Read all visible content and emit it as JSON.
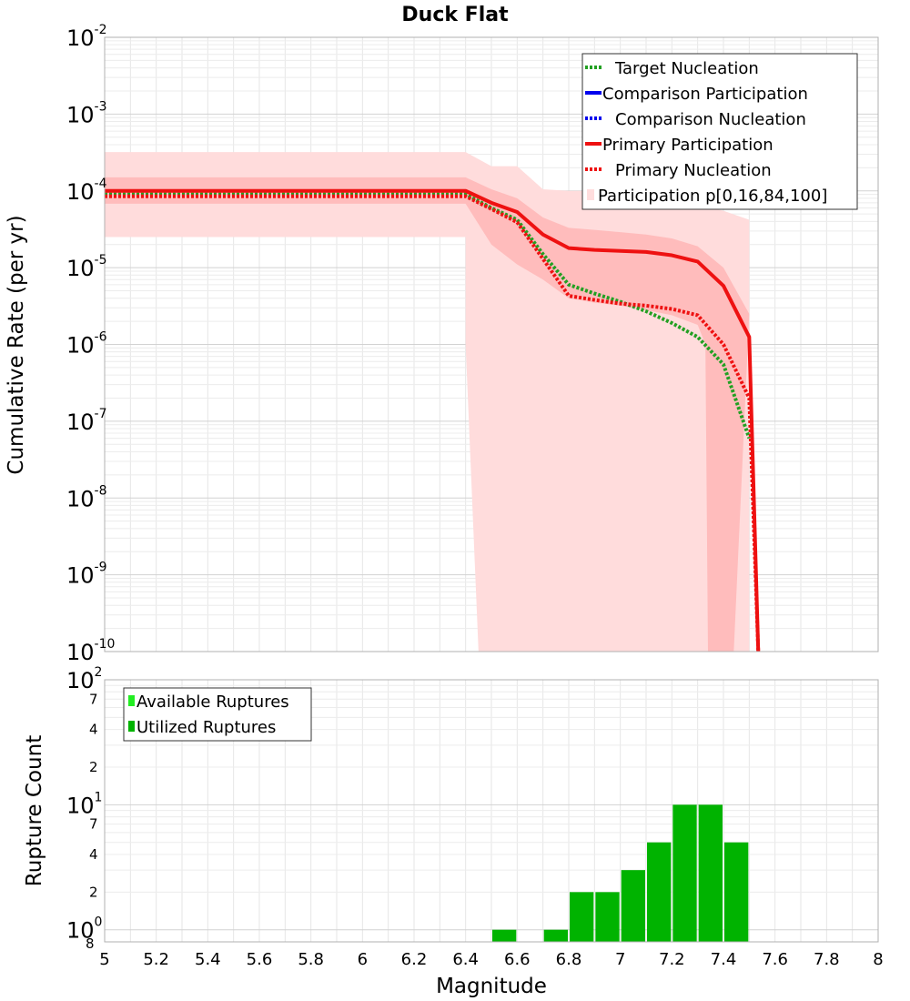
{
  "chart_data": [
    {
      "type": "line",
      "title": "Duck Flat",
      "xlabel": "",
      "ylabel": "Cumulative Rate (per yr)",
      "xlim": [
        5,
        8
      ],
      "ylim": [
        1e-10,
        0.01
      ],
      "y_scale": "log",
      "grid": true,
      "legend_position": "top-right",
      "y_tick_labels": [
        {
          "base": "10",
          "exp": "-2"
        },
        {
          "base": "10",
          "exp": "-3"
        },
        {
          "base": "10",
          "exp": "-4"
        },
        {
          "base": "10",
          "exp": "-5"
        },
        {
          "base": "10",
          "exp": "-6"
        },
        {
          "base": "10",
          "exp": "-7"
        },
        {
          "base": "10",
          "exp": "-8"
        },
        {
          "base": "10",
          "exp": "-9"
        },
        {
          "base": "10",
          "exp": "-10"
        }
      ],
      "legend": [
        {
          "label": "Target Nucleation",
          "color": "#22a022",
          "style": "dotted"
        },
        {
          "label": "Comparison Participation",
          "color": "#0000ee",
          "style": "solid"
        },
        {
          "label": "Comparison Nucleation",
          "color": "#0000ee",
          "style": "dotted"
        },
        {
          "label": "Primary Participation",
          "color": "#ee1111",
          "style": "solid"
        },
        {
          "label": "Primary Nucleation",
          "color": "#ee1111",
          "style": "dotted"
        },
        {
          "label": "Participation p[0,16,84,100]",
          "color": "#ffdddd",
          "style": "band"
        }
      ],
      "series": [
        {
          "name": "Target Nucleation",
          "color": "#22a022",
          "style": "dotted",
          "x": [
            5.0,
            6.4,
            6.5,
            6.6,
            6.7,
            6.8,
            6.9,
            7.0,
            7.1,
            7.2,
            7.3,
            7.4,
            7.5
          ],
          "y": [
            9e-05,
            9e-05,
            6e-05,
            4.2e-05,
            1.5e-05,
            6e-06,
            4.6e-06,
            3.6e-06,
            2.7e-06,
            1.9e-06,
            1.25e-06,
            5.5e-07,
            6e-08
          ]
        },
        {
          "name": "Primary Participation",
          "color": "#ee1111",
          "style": "solid",
          "x": [
            5.0,
            6.4,
            6.5,
            6.6,
            6.7,
            6.8,
            6.9,
            7.0,
            7.1,
            7.2,
            7.3,
            7.4,
            7.5,
            7.535
          ],
          "y": [
            0.0001,
            0.0001,
            7e-05,
            5.3e-05,
            2.7e-05,
            1.8e-05,
            1.7e-05,
            1.65e-05,
            1.6e-05,
            1.45e-05,
            1.2e-05,
            5.8e-06,
            1.25e-06,
            1e-10
          ]
        },
        {
          "name": "Primary Nucleation",
          "color": "#ee1111",
          "style": "dotted",
          "x": [
            5.0,
            6.4,
            6.5,
            6.6,
            6.7,
            6.8,
            6.9,
            7.0,
            7.1,
            7.2,
            7.3,
            7.4,
            7.5,
            7.535
          ],
          "y": [
            8.5e-05,
            8.5e-05,
            5.8e-05,
            3.9e-05,
            1.3e-05,
            4.3e-06,
            3.8e-06,
            3.4e-06,
            3.2e-06,
            2.9e-06,
            2.4e-06,
            1e-06,
            2e-07,
            1e-10
          ]
        }
      ],
      "bands": [
        {
          "name": "Participation p[0,100]",
          "color": "#ffdcdc",
          "upper": {
            "x": [
              5.0,
              6.4,
              6.5,
              6.6,
              6.7,
              6.8,
              6.9,
              7.0,
              7.1,
              7.2,
              7.3,
              7.4,
              7.5
            ],
            "y": [
              0.00032,
              0.00032,
              0.00021,
              0.00021,
              0.000105,
              0.0001,
              0.0001,
              9.5e-05,
              8.8e-05,
              8e-05,
              6.5e-05,
              5.5e-05,
              4.2e-05
            ]
          },
          "lower": {
            "x": [
              5.0,
              6.4,
              6.4,
              6.45,
              7.5
            ],
            "y": [
              2.5e-05,
              2.5e-05,
              1e-06,
              1e-10,
              1e-10
            ]
          }
        },
        {
          "name": "Participation p[16,84]",
          "color": "#ffbcbc",
          "upper": {
            "x": [
              5.0,
              6.4,
              6.5,
              6.6,
              6.7,
              6.8,
              6.9,
              7.0,
              7.1,
              7.2,
              7.3,
              7.4,
              7.5
            ],
            "y": [
              0.00015,
              0.00015,
              0.000105,
              8e-05,
              4.5e-05,
              3.3e-05,
              3.1e-05,
              2.9e-05,
              2.7e-05,
              2.4e-05,
              1.9e-05,
              1e-05,
              2.5e-06
            ]
          },
          "lower": {
            "x": [
              5.0,
              6.4,
              6.5,
              6.6,
              6.7,
              6.8,
              6.9,
              7.0,
              7.1,
              7.2,
              7.3,
              7.33,
              7.34,
              7.43,
              7.44
            ],
            "y": [
              6.8e-05,
              6.8e-05,
              2e-05,
              1.1e-05,
              7e-06,
              4e-06,
              3.5e-06,
              3.2e-06,
              2.8e-06,
              2.4e-06,
              1.8e-06,
              1e-06,
              1e-10,
              1e-10,
              1e-10
            ]
          }
        }
      ]
    },
    {
      "type": "bar",
      "title": "",
      "xlabel": "Magnitude",
      "ylabel": "Rupture Count",
      "xlim": [
        5,
        8
      ],
      "ylim": [
        0.8,
        100
      ],
      "y_scale": "log",
      "grid": true,
      "legend_position": "top-left",
      "x_ticks": [
        "5",
        "5.2",
        "5.4",
        "5.6",
        "5.8",
        "6",
        "6.2",
        "6.4",
        "6.6",
        "6.8",
        "7",
        "7.2",
        "7.4",
        "7.6",
        "7.8",
        "8"
      ],
      "y_tick_labels": [
        {
          "base": "10",
          "exp": "2"
        },
        {
          "base": "10",
          "exp": "1"
        },
        {
          "base": "10",
          "exp": "0"
        }
      ],
      "y_minor_tick_labels": [
        {
          "value": 7,
          "label": "7"
        },
        {
          "value": 4,
          "label": "4"
        },
        {
          "value": 2,
          "label": "2"
        },
        {
          "value": 70,
          "label": "7"
        },
        {
          "value": 40,
          "label": "4"
        },
        {
          "value": 20,
          "label": "2"
        },
        {
          "value": 0.8,
          "label": "8"
        }
      ],
      "legend": [
        {
          "label": "Available Ruptures",
          "color": "#22ee22"
        },
        {
          "label": "Utilized Ruptures",
          "color": "#00b300"
        }
      ],
      "series": [
        {
          "name": "Utilized Ruptures",
          "color": "#00b300",
          "x": [
            6.55,
            6.75,
            6.85,
            6.95,
            7.05,
            7.15,
            7.25,
            7.35,
            7.45
          ],
          "values": [
            1,
            1,
            2,
            2,
            3,
            5,
            10,
            10,
            5
          ]
        }
      ]
    }
  ]
}
